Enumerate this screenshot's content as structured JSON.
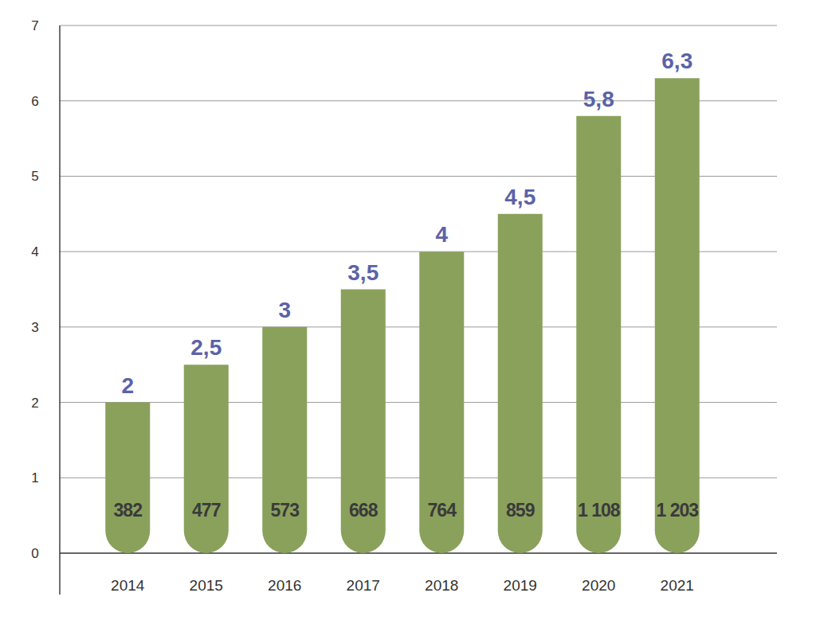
{
  "chart_data": {
    "type": "bar",
    "categories": [
      "2014",
      "2015",
      "2016",
      "2017",
      "2018",
      "2019",
      "2020",
      "2021"
    ],
    "values": [
      2,
      2.5,
      3,
      3.5,
      4,
      4.5,
      5.8,
      6.3
    ],
    "value_labels": [
      "2",
      "2,5",
      "3",
      "3,5",
      "4",
      "4,5",
      "5,8",
      "6,3"
    ],
    "bar_counts": [
      382,
      477,
      573,
      668,
      764,
      859,
      1108,
      1203
    ],
    "bar_count_labels": [
      "382",
      "477",
      "573",
      "668",
      "764",
      "859",
      "1 108",
      "1 203"
    ],
    "color": "#8aa15c",
    "ylim": [
      0,
      7
    ],
    "yticks": [
      0,
      1,
      2,
      3,
      4,
      5,
      6,
      7
    ],
    "grid": true,
    "data_labels": true
  }
}
